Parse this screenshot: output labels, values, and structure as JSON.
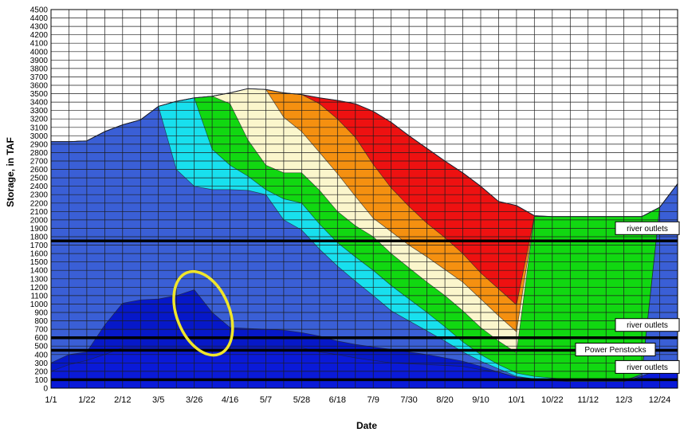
{
  "chart_data": {
    "type": "area",
    "xlabel": "Date",
    "ylabel": "Storage, in TAF",
    "ylim": [
      0,
      4500
    ],
    "yticks": [
      0,
      100,
      200,
      300,
      400,
      500,
      600,
      700,
      800,
      900,
      1000,
      1100,
      1200,
      1300,
      1400,
      1500,
      1600,
      1700,
      1800,
      1900,
      2000,
      2100,
      2200,
      2300,
      2400,
      2500,
      2600,
      2700,
      2800,
      2900,
      3000,
      3100,
      3200,
      3300,
      3400,
      3500,
      3600,
      3700,
      3800,
      3900,
      4000,
      4100,
      4200,
      4300,
      4400,
      4500
    ],
    "xticks": [
      "1/1",
      "1/22",
      "2/12",
      "3/5",
      "3/26",
      "4/16",
      "5/7",
      "5/28",
      "6/18",
      "7/9",
      "7/30",
      "8/20",
      "9/10",
      "10/1",
      "10/22",
      "11/12",
      "12/3",
      "12/24"
    ],
    "grid": true,
    "x": [
      "1/1",
      "1/11",
      "1/22",
      "2/1",
      "2/12",
      "2/22",
      "3/5",
      "3/15",
      "3/26",
      "4/5",
      "4/16",
      "4/26",
      "5/7",
      "5/17",
      "5/28",
      "6/7",
      "6/18",
      "6/28",
      "7/9",
      "7/19",
      "7/30",
      "8/9",
      "8/20",
      "8/30",
      "9/10",
      "9/20",
      "10/1",
      "10/11",
      "10/22",
      "11/1",
      "11/12",
      "11/22",
      "12/3",
      "12/13",
      "12/24",
      "12/31"
    ],
    "envelope": [
      2930,
      2930,
      2940,
      3050,
      3130,
      3190,
      3350,
      3410,
      3450,
      3470,
      3510,
      3560,
      3550,
      3510,
      3490,
      3450,
      3420,
      3380,
      3290,
      3160,
      3000,
      2850,
      2700,
      2560,
      2400,
      2220,
      2170,
      2050,
      2040,
      2040,
      2040,
      2040,
      2040,
      2040,
      2150,
      2430
    ],
    "bands": [
      {
        "color": "#0a1ad8",
        "values": [
          200,
          280,
          330,
          400,
          480,
          480,
          480,
          480,
          480,
          480,
          480,
          480,
          480,
          480,
          480,
          430,
          400,
          360,
          330,
          300,
          290,
          280,
          270,
          260,
          220,
          190,
          130,
          110,
          90,
          80,
          80,
          80,
          80,
          140,
          230,
          330
        ]
      },
      {
        "color": "#0618c9",
        "values": [
          300,
          400,
          430,
          750,
          1010,
          1050,
          1060,
          1100,
          1170,
          900,
          720,
          710,
          700,
          690,
          660,
          620,
          560,
          520,
          490,
          460,
          430,
          400,
          360,
          320,
          260,
          190,
          130,
          110,
          90,
          80,
          80,
          80,
          80,
          140,
          230,
          330
        ]
      },
      {
        "color": "#3a5fd6",
        "values": [
          2930,
          2930,
          2940,
          3050,
          3130,
          3190,
          3350,
          2600,
          2400,
          2360,
          2360,
          2350,
          2300,
          2000,
          1880,
          1650,
          1450,
          1270,
          1100,
          920,
          800,
          680,
          560,
          430,
          320,
          230,
          140,
          110,
          90,
          80,
          80,
          80,
          80,
          170,
          2150,
          2430
        ]
      },
      {
        "color": "#18e0ee",
        "values": [
          2930,
          2930,
          2940,
          3050,
          3130,
          3190,
          3350,
          3410,
          3450,
          2840,
          2650,
          2520,
          2360,
          2250,
          2200,
          1950,
          1730,
          1560,
          1400,
          1220,
          1060,
          900,
          730,
          550,
          400,
          280,
          180,
          140,
          120,
          100,
          100,
          100,
          100,
          150,
          2150,
          2430
        ]
      },
      {
        "color": "#11d811",
        "values": [
          2930,
          2930,
          2940,
          3050,
          3130,
          3190,
          3350,
          3410,
          3450,
          3470,
          3380,
          2950,
          2650,
          2560,
          2560,
          2350,
          2100,
          1930,
          1800,
          1600,
          1430,
          1260,
          1100,
          920,
          720,
          560,
          420,
          2040,
          2040,
          2040,
          2040,
          2040,
          2040,
          2040,
          2150,
          2430
        ]
      },
      {
        "color": "#fbf6cc",
        "values": [
          2930,
          2930,
          2940,
          3050,
          3130,
          3190,
          3350,
          3410,
          3450,
          3470,
          3510,
          3560,
          3550,
          3220,
          3050,
          2800,
          2550,
          2280,
          2020,
          1860,
          1700,
          1560,
          1410,
          1260,
          1060,
          860,
          670,
          2040,
          2040,
          2040,
          2040,
          2040,
          2040,
          2040,
          2150,
          2430
        ]
      },
      {
        "color": "#f59010",
        "values": [
          2930,
          2930,
          2940,
          3050,
          3130,
          3190,
          3350,
          3410,
          3450,
          3470,
          3510,
          3560,
          3550,
          3510,
          3490,
          3380,
          3200,
          2980,
          2660,
          2380,
          2160,
          1960,
          1790,
          1600,
          1370,
          1180,
          990,
          2040,
          2040,
          2040,
          2040,
          2040,
          2040,
          2040,
          2150,
          2430
        ]
      },
      {
        "color": "#ee1111",
        "values": [
          2930,
          2930,
          2940,
          3050,
          3130,
          3190,
          3350,
          3410,
          3450,
          3470,
          3510,
          3560,
          3550,
          3510,
          3490,
          3450,
          3420,
          3380,
          3290,
          3160,
          3000,
          2850,
          2700,
          2560,
          2400,
          2220,
          2170,
          2050,
          2040,
          2040,
          2040,
          2040,
          2040,
          2040,
          2150,
          2430
        ]
      }
    ],
    "reference_lines": [
      {
        "y": 1750,
        "label": "river outlets"
      },
      {
        "y": 600,
        "label": "river outlets"
      },
      {
        "y": 450,
        "label": "Power Penstocks"
      },
      {
        "y": 100,
        "label": "river outlets"
      }
    ],
    "highlight": {
      "shape": "ellipse",
      "color": "#f0e62a"
    }
  }
}
